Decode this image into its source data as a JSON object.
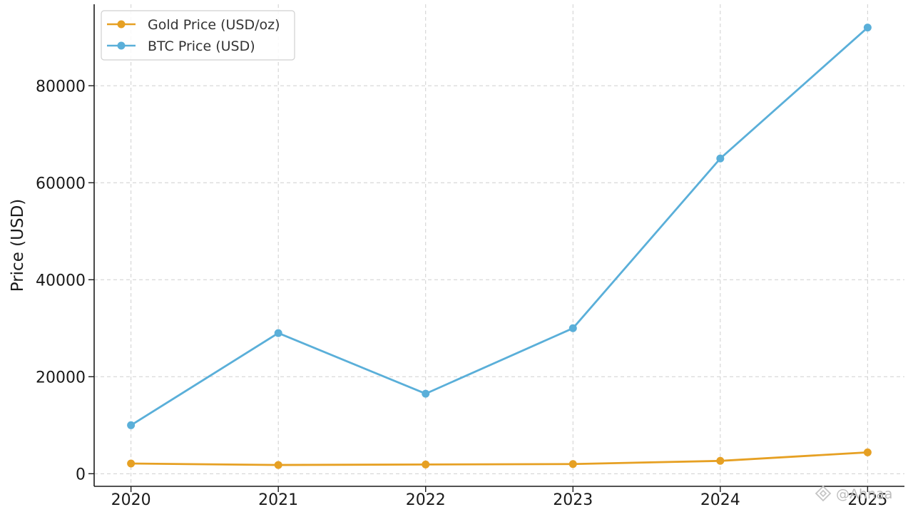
{
  "chart_data": {
    "type": "line",
    "categories": [
      "2020",
      "2021",
      "2022",
      "2023",
      "2024",
      "2025"
    ],
    "x": [
      2020,
      2021,
      2022,
      2023,
      2024,
      2025
    ],
    "series": [
      {
        "name": "Gold Price (USD/oz)",
        "color": "#e6a023",
        "values": [
          2100,
          1800,
          1900,
          2000,
          2650,
          4400
        ]
      },
      {
        "name": "BTC Price (USD)",
        "color": "#5aafd9",
        "values": [
          10000,
          29000,
          16500,
          30000,
          65000,
          92000
        ]
      }
    ],
    "title": "",
    "xlabel": "",
    "ylabel": "Price (USD)",
    "yticks": [
      0,
      20000,
      40000,
      60000,
      80000
    ],
    "ylim": [
      -2600,
      96800
    ],
    "xlim": [
      2019.75,
      2025.25
    ],
    "grid": true,
    "legend": "top-left"
  },
  "watermark": {
    "text": "@Ahnaa",
    "icon": "diamond-logo-icon"
  }
}
